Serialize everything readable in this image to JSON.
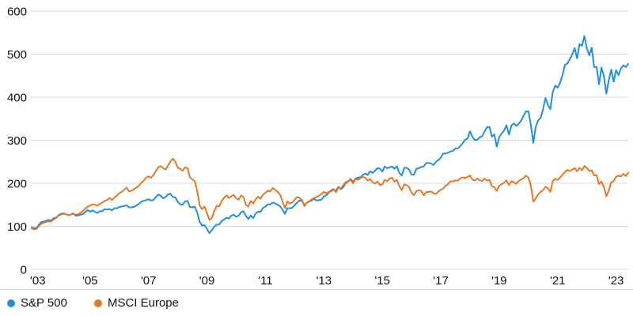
{
  "colors": {
    "background": "#ffffff",
    "grid": "#d8d8d8",
    "axis_text": "#111111",
    "separator": "#d8d8d8",
    "sp500": "#1f8fe0",
    "msci_europe": "#e87722"
  },
  "chart_data": {
    "type": "line",
    "title": "",
    "xlabel": "",
    "ylabel": "",
    "ylim": [
      0,
      600
    ],
    "y_ticks": [
      0,
      100,
      200,
      300,
      400,
      500,
      600
    ],
    "grid": true,
    "legend_position": "bottom-left",
    "x_start_year": 2003,
    "points_per_year": 12,
    "x_tick_interval_years": 2,
    "x_tick_labels": [
      "'03",
      "'05",
      "'07",
      "'09",
      "'11",
      "'13",
      "'15",
      "'17",
      "'19",
      "'21",
      "'23"
    ],
    "series": [
      {
        "name": "S&P 500",
        "color": "#1f8fe0",
        "values": [
          97,
          96,
          96,
          104,
          110,
          111,
          113,
          115,
          113,
          119,
          120,
          126,
          129,
          130,
          128,
          126,
          127,
          130,
          125,
          125,
          127,
          128,
          133,
          138,
          134,
          137,
          134,
          131,
          135,
          135,
          140,
          139,
          140,
          137,
          142,
          142,
          145,
          146,
          147,
          149,
          144,
          144,
          145,
          148,
          152,
          157,
          159,
          161,
          163,
          160,
          161,
          168,
          174,
          171,
          165,
          168,
          174,
          176,
          168,
          167,
          157,
          151,
          150,
          158,
          159,
          145,
          144,
          146,
          132,
          110,
          102,
          103,
          94,
          84,
          91,
          99,
          104,
          104,
          112,
          116,
          120,
          118,
          125,
          127,
          122,
          125,
          133,
          135,
          124,
          117,
          125,
          119,
          130,
          134,
          134,
          143,
          146,
          151,
          151,
          155,
          153,
          150,
          147,
          139,
          129,
          142,
          142,
          143,
          149,
          155,
          160,
          159,
          149,
          155,
          157,
          160,
          164,
          160,
          161,
          162,
          170,
          172,
          178,
          182,
          185,
          183,
          192,
          186,
          191,
          200,
          205,
          210,
          203,
          211,
          213,
          214,
          219,
          223,
          219,
          228,
          224,
          229,
          235,
          234,
          227,
          239,
          235,
          237,
          239,
          234,
          239,
          224,
          218,
          236,
          236,
          232,
          220,
          220,
          234,
          235,
          238,
          239,
          247,
          247,
          246,
          242,
          250,
          254,
          259,
          269,
          269,
          271,
          274,
          275,
          281,
          281,
          286,
          293,
          301,
          304,
          321,
          308,
          300,
          301,
          307,
          309,
          320,
          330,
          331,
          308,
          314,
          285,
          307,
          316,
          322,
          335,
          313,
          334,
          339,
          333,
          338,
          345,
          357,
          367,
          367,
          336,
          294,
          331,
          346,
          352,
          372,
          398,
          382,
          372,
          412,
          427,
          422,
          433,
          451,
          475,
          478,
          488,
          499,
          514,
          490,
          523,
          519,
          542,
          513,
          497,
          515,
          470,
          470,
          430,
          469,
          449,
          408,
          440,
          464,
          436,
          463,
          451,
          467,
          474,
          470,
          477
        ]
      },
      {
        "name": "MSCI Europe",
        "color": "#e87722",
        "values": [
          95,
          93,
          94,
          101,
          106,
          108,
          110,
          112,
          111,
          116,
          119,
          125,
          127,
          129,
          128,
          126,
          127,
          129,
          127,
          128,
          131,
          135,
          141,
          146,
          148,
          151,
          150,
          148,
          152,
          155,
          159,
          161,
          166,
          161,
          167,
          171,
          177,
          180,
          185,
          190,
          181,
          183,
          186,
          190,
          194,
          201,
          206,
          213,
          216,
          213,
          219,
          228,
          237,
          240,
          235,
          232,
          241,
          251,
          257,
          250,
          236,
          234,
          229,
          237,
          235,
          214,
          209,
          205,
          182,
          148,
          140,
          146,
          130,
          115,
          119,
          135,
          148,
          146,
          158,
          166,
          172,
          166,
          170,
          173,
          165,
          162,
          172,
          168,
          150,
          146,
          159,
          153,
          163,
          169,
          164,
          174,
          178,
          183,
          181,
          189,
          185,
          180,
          174,
          158,
          142,
          158,
          153,
          155,
          162,
          168,
          166,
          161,
          147,
          155,
          158,
          163,
          166,
          168,
          171,
          175,
          180,
          177,
          179,
          184,
          187,
          179,
          190,
          188,
          196,
          203,
          204,
          208,
          200,
          210,
          208,
          212,
          215,
          213,
          206,
          210,
          202,
          199,
          204,
          196,
          197,
          208,
          205,
          211,
          213,
          204,
          208,
          193,
          184,
          197,
          196,
          191,
          178,
          172,
          182,
          184,
          182,
          172,
          179,
          180,
          181,
          177,
          175,
          181,
          185,
          188,
          194,
          198,
          205,
          204,
          207,
          206,
          211,
          214,
          212,
          215,
          218,
          209,
          206,
          211,
          207,
          205,
          211,
          206,
          208,
          193,
          191,
          182,
          194,
          198,
          201,
          207,
          196,
          205,
          202,
          199,
          205,
          209,
          212,
          218,
          213,
          195,
          157,
          165,
          174,
          180,
          184,
          192,
          189,
          180,
          205,
          210,
          208,
          213,
          220,
          226,
          231,
          228,
          232,
          235,
          228,
          236,
          230,
          240,
          236,
          228,
          230,
          218,
          219,
          198,
          204,
          192,
          170,
          183,
          202,
          205,
          215,
          218,
          216,
          222,
          217,
          225
        ]
      }
    ]
  }
}
